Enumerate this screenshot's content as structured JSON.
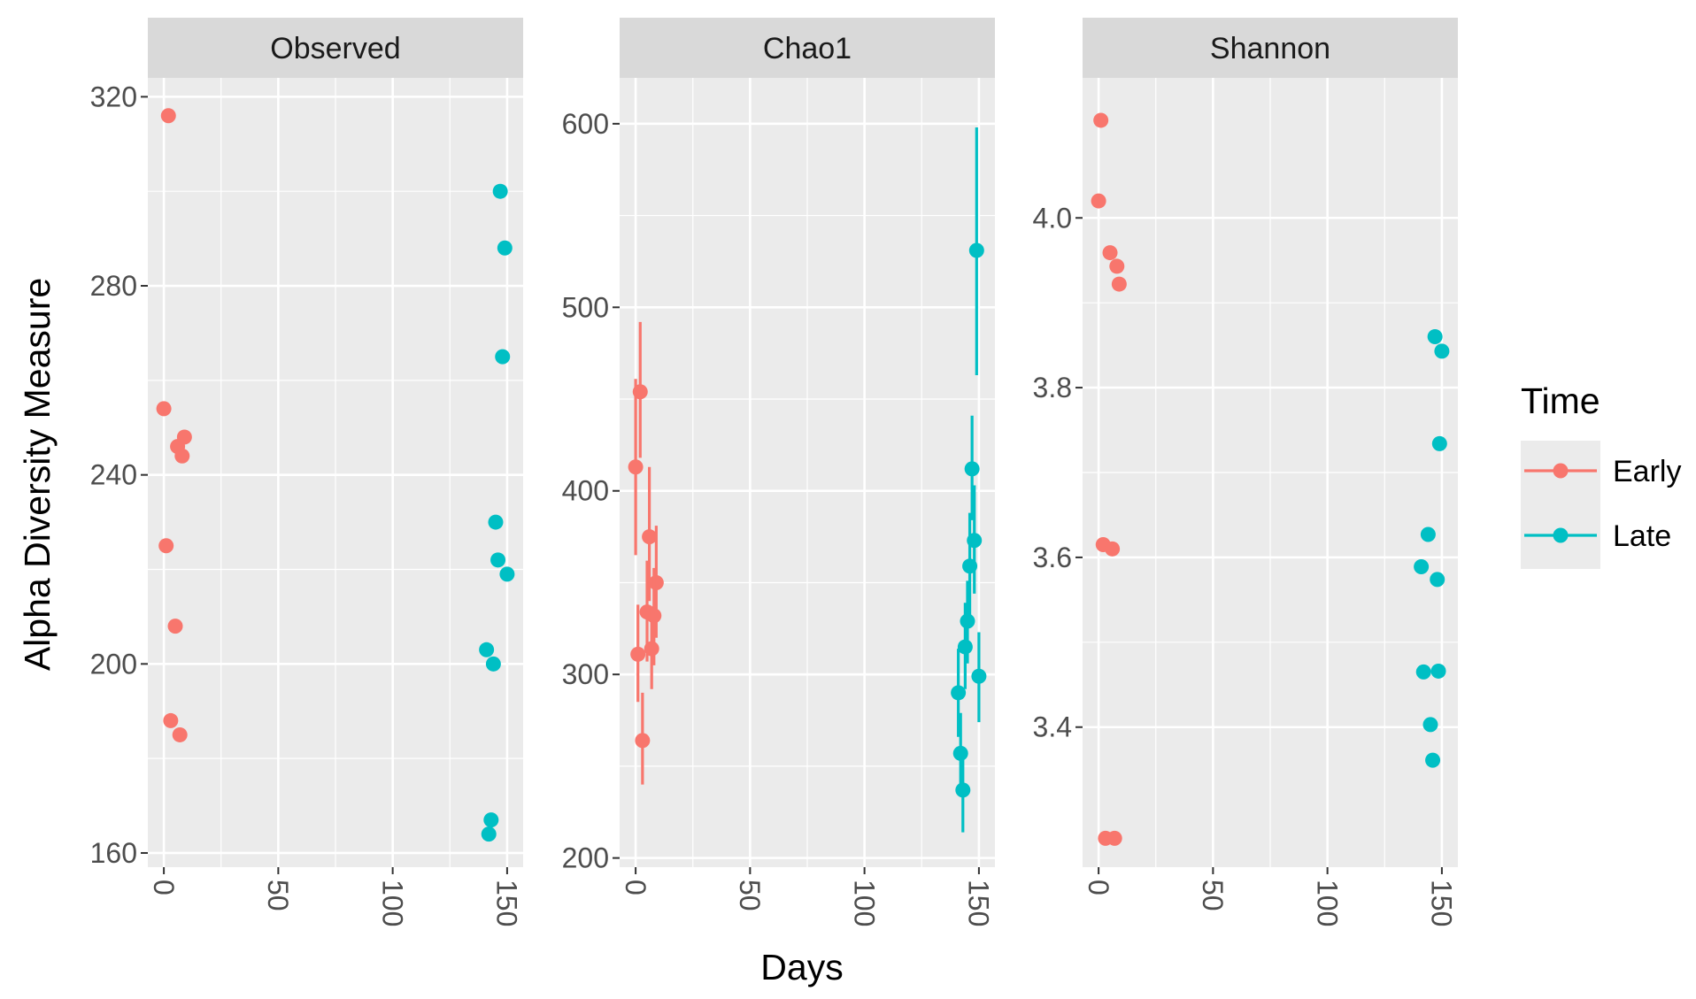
{
  "chart_data": {
    "type": "scatter",
    "xlabel": "Days",
    "ylabel": "Alpha Diversity Measure",
    "x_ticks": [
      0,
      50,
      100,
      150
    ],
    "xlim": [
      -7,
      157
    ],
    "grid": true,
    "legend": {
      "title": "Time",
      "position": "right",
      "entries": [
        {
          "name": "Early",
          "color": "#F8766D"
        },
        {
          "name": "Late",
          "color": "#00BFC4"
        }
      ]
    },
    "facets": [
      {
        "label": "Observed",
        "ylim": [
          157,
          324
        ],
        "y_ticks": [
          160,
          200,
          240,
          280,
          320
        ],
        "y_tick_labels": [
          "160",
          "200",
          "240",
          "280",
          "320"
        ],
        "series": [
          {
            "name": "Early",
            "points": [
              {
                "x": 2,
                "y": 316
              },
              {
                "x": 0,
                "y": 254
              },
              {
                "x": 9,
                "y": 248
              },
              {
                "x": 6,
                "y": 246
              },
              {
                "x": 8,
                "y": 244
              },
              {
                "x": 1,
                "y": 225
              },
              {
                "x": 5,
                "y": 208
              },
              {
                "x": 3,
                "y": 188
              },
              {
                "x": 7,
                "y": 185
              }
            ]
          },
          {
            "name": "Late",
            "points": [
              {
                "x": 147,
                "y": 300
              },
              {
                "x": 149,
                "y": 288
              },
              {
                "x": 148,
                "y": 265
              },
              {
                "x": 145,
                "y": 230
              },
              {
                "x": 146,
                "y": 222
              },
              {
                "x": 150,
                "y": 219
              },
              {
                "x": 141,
                "y": 203
              },
              {
                "x": 144,
                "y": 200
              },
              {
                "x": 143,
                "y": 167
              },
              {
                "x": 142,
                "y": 164
              }
            ]
          }
        ]
      },
      {
        "label": "Chao1",
        "ylim": [
          195,
          625
        ],
        "y_ticks": [
          200,
          300,
          400,
          500,
          600
        ],
        "y_tick_labels": [
          "200",
          "300",
          "400",
          "500",
          "600"
        ],
        "series": [
          {
            "name": "Early",
            "points": [
              {
                "x": 2,
                "y": 454,
                "ymin": 418,
                "ymax": 492
              },
              {
                "x": 0,
                "y": 413,
                "ymin": 365,
                "ymax": 461
              },
              {
                "x": 6,
                "y": 375,
                "ymin": 340,
                "ymax": 413
              },
              {
                "x": 9,
                "y": 350,
                "ymin": 320,
                "ymax": 381
              },
              {
                "x": 8,
                "y": 332,
                "ymin": 305,
                "ymax": 358
              },
              {
                "x": 5,
                "y": 334,
                "ymin": 307,
                "ymax": 362
              },
              {
                "x": 7,
                "y": 314,
                "ymin": 292,
                "ymax": 337
              },
              {
                "x": 1,
                "y": 311,
                "ymin": 285,
                "ymax": 338
              },
              {
                "x": 3,
                "y": 264,
                "ymin": 240,
                "ymax": 290
              }
            ]
          },
          {
            "name": "Late",
            "points": [
              {
                "x": 149,
                "y": 531,
                "ymin": 463,
                "ymax": 598
              },
              {
                "x": 147,
                "y": 412,
                "ymin": 384,
                "ymax": 441
              },
              {
                "x": 148,
                "y": 373,
                "ymin": 344,
                "ymax": 403
              },
              {
                "x": 146,
                "y": 359,
                "ymin": 330,
                "ymax": 388
              },
              {
                "x": 145,
                "y": 329,
                "ymin": 306,
                "ymax": 351
              },
              {
                "x": 144,
                "y": 315,
                "ymin": 292,
                "ymax": 339
              },
              {
                "x": 150,
                "y": 299,
                "ymin": 274,
                "ymax": 323
              },
              {
                "x": 141,
                "y": 290,
                "ymin": 266,
                "ymax": 314
              },
              {
                "x": 142,
                "y": 257,
                "ymin": 235,
                "ymax": 279
              },
              {
                "x": 143,
                "y": 237,
                "ymin": 214,
                "ymax": 259
              }
            ]
          }
        ]
      },
      {
        "label": "Shannon",
        "ylim": [
          3.235,
          4.165
        ],
        "y_ticks": [
          3.4,
          3.6,
          3.8,
          4.0
        ],
        "y_tick_labels": [
          "3.4",
          "3.6",
          "3.8",
          "4.0"
        ],
        "series": [
          {
            "name": "Early",
            "points": [
              {
                "x": 1,
                "y": 4.115
              },
              {
                "x": 0,
                "y": 4.02
              },
              {
                "x": 5,
                "y": 3.959
              },
              {
                "x": 8,
                "y": 3.943
              },
              {
                "x": 9,
                "y": 3.922
              },
              {
                "x": 2,
                "y": 3.615
              },
              {
                "x": 6,
                "y": 3.61
              },
              {
                "x": 3,
                "y": 3.269
              },
              {
                "x": 7,
                "y": 3.269
              }
            ]
          },
          {
            "name": "Late",
            "points": [
              {
                "x": 147,
                "y": 3.86
              },
              {
                "x": 150,
                "y": 3.843
              },
              {
                "x": 149,
                "y": 3.734
              },
              {
                "x": 144,
                "y": 3.627
              },
              {
                "x": 141,
                "y": 3.589
              },
              {
                "x": 148,
                "y": 3.574
              },
              {
                "x": 142,
                "y": 3.465
              },
              {
                "x": 148.5,
                "y": 3.466
              },
              {
                "x": 145,
                "y": 3.403
              },
              {
                "x": 146,
                "y": 3.361
              }
            ]
          }
        ]
      }
    ]
  }
}
